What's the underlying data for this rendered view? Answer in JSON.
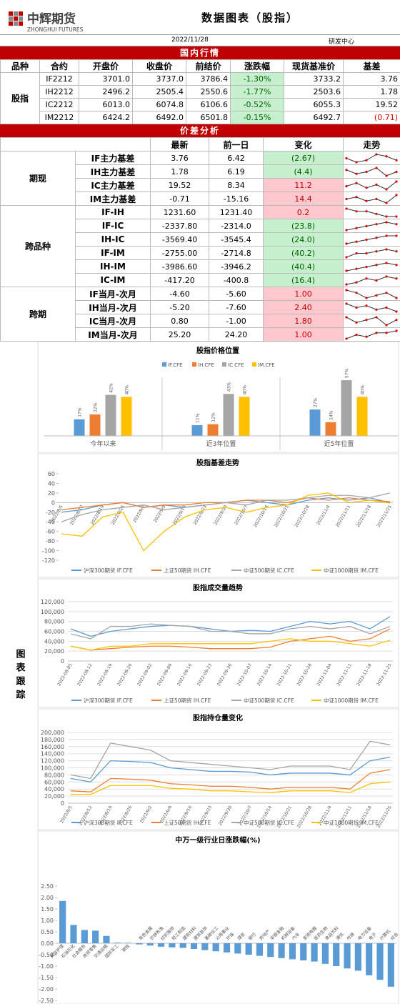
{
  "header": {
    "logo": "中辉期货",
    "logo_en": "ZHONGHUI FUTURES",
    "title": "数据图表（股指）",
    "date": "2022/11/28",
    "dept": "研发中心"
  },
  "market": {
    "title": "国内行情",
    "columns": [
      "品种",
      "合约",
      "开盘价",
      "收盘价",
      "前结价",
      "涨跌幅",
      "现货基准价",
      "基差"
    ],
    "group": "股指",
    "rows": [
      [
        "IF2212",
        "3701.0",
        "3737.0",
        "3786.4",
        "-1.30%",
        "3733.2",
        "3.76"
      ],
      [
        "IH2212",
        "2496.2",
        "2505.4",
        "2550.6",
        "-1.77%",
        "2503.6",
        "1.78"
      ],
      [
        "IC2212",
        "6013.0",
        "6074.8",
        "6106.6",
        "-0.52%",
        "6055.3",
        "19.52"
      ],
      [
        "IM2212",
        "6424.2",
        "6492.0",
        "6501.8",
        "-0.15%",
        "6492.7",
        "(0.71)"
      ]
    ]
  },
  "spread": {
    "title": "价差分析",
    "columns": [
      "最新",
      "前一日",
      "变化",
      "走势"
    ],
    "groups": [
      {
        "name": "期现",
        "rows": [
          {
            "name": "IF主力基差",
            "latest": "3.76",
            "prev": "6.42",
            "change": "(2.67)",
            "trend": [
              5,
              3,
              4,
              7,
              6,
              4
            ]
          },
          {
            "name": "IH主力基差",
            "latest": "1.78",
            "prev": "6.19",
            "change": "(4.4)",
            "trend": [
              6,
              4,
              5,
              7,
              3,
              5
            ]
          },
          {
            "name": "IC主力基差",
            "latest": "19.52",
            "prev": "8.34",
            "change": "11.2",
            "trend": [
              4,
              6,
              3,
              5,
              2,
              7
            ]
          },
          {
            "name": "IM主力基差",
            "latest": "-0.71",
            "prev": "-15.16",
            "change": "14.4",
            "trend": [
              5,
              6,
              4,
              5,
              3,
              7
            ]
          }
        ]
      },
      {
        "name": "跨品种",
        "rows": [
          {
            "name": "IF-IH",
            "latest": "1231.60",
            "prev": "1231.40",
            "change": "0.2",
            "trend": [
              7,
              6,
              6,
              5,
              4,
              4
            ]
          },
          {
            "name": "IF-IC",
            "latest": "-2337.80",
            "prev": "-2314.0",
            "change": "(23.8)",
            "trend": [
              3,
              4,
              5,
              6,
              7,
              6
            ]
          },
          {
            "name": "IH-IC",
            "latest": "-3569.40",
            "prev": "-3545.4",
            "change": "(24.0)",
            "trend": [
              3,
              4,
              5,
              6,
              7,
              7
            ]
          },
          {
            "name": "IF-IM",
            "latest": "-2755.00",
            "prev": "-2714.8",
            "change": "(40.2)",
            "trend": [
              3,
              5,
              5,
              6,
              7,
              6
            ]
          },
          {
            "name": "IH-IM",
            "latest": "-3986.60",
            "prev": "-3946.2",
            "change": "(40.4)",
            "trend": [
              3,
              4,
              5,
              6,
              7,
              6
            ]
          },
          {
            "name": "IC-IM",
            "latest": "-417.20",
            "prev": "-400.8",
            "change": "(16.4)",
            "trend": [
              3,
              4,
              6,
              5,
              7,
              6
            ]
          }
        ]
      },
      {
        "name": "跨期",
        "rows": [
          {
            "name": "IF当月-次月",
            "latest": "-4.60",
            "prev": "-5.60",
            "change": "1.00",
            "trend": [
              6,
              5,
              3,
              4,
              5,
              3
            ]
          },
          {
            "name": "IH当月-次月",
            "latest": "-5.20",
            "prev": "-7.60",
            "change": "2.40",
            "trend": [
              6,
              4,
              5,
              3,
              4,
              2
            ]
          },
          {
            "name": "IC当月-次月",
            "latest": "0.80",
            "prev": "-1.00",
            "change": "1.80",
            "trend": [
              6,
              4,
              5,
              6,
              3,
              5
            ]
          },
          {
            "name": "IM当月-次月",
            "latest": "25.20",
            "prev": "24.20",
            "change": "1.00",
            "trend": [
              3,
              5,
              4,
              6,
              6,
              7
            ]
          }
        ]
      }
    ]
  },
  "section_label": "图表跟踪",
  "chart_data": [
    {
      "type": "bar",
      "title": "股指价格位置",
      "categories": [
        "今年以来",
        "近3年位置",
        "近5年位置"
      ],
      "ylim": [
        0,
        60
      ],
      "series": [
        {
          "name": "IF.CFE",
          "color": "#5b9bd5",
          "values": [
            17,
            11,
            27
          ],
          "value_labels": [
            "17%",
            "11%",
            "27%"
          ]
        },
        {
          "name": "IH.CFE",
          "color": "#ed7d31",
          "values": [
            22,
            12,
            14
          ],
          "value_labels": [
            "22%",
            "12%",
            "14%"
          ]
        },
        {
          "name": "IC.CFE",
          "color": "#a5a5a5",
          "values": [
            42,
            43,
            57
          ],
          "value_labels": [
            "42%",
            "43%",
            "57%"
          ]
        },
        {
          "name": "IM.CFE",
          "color": "#ffc000",
          "values": [
            40,
            40,
            40
          ],
          "value_labels": [
            "40%",
            "40%",
            "40%"
          ]
        }
      ]
    },
    {
      "type": "line",
      "title": "股指基差走势",
      "grid": false,
      "ylim": [
        -120,
        60
      ],
      "yticks": [
        -120,
        -100,
        -80,
        -60,
        -40,
        -20,
        0,
        20,
        40,
        60
      ],
      "categories": [
        "2022/8/5",
        "2022/8/12",
        "2022/8/19",
        "2022/8/26",
        "2022/9/2",
        "2022/9/9",
        "2022/9/16",
        "2022/9/23",
        "2022/9/30",
        "2022/10/7",
        "2022/10/14",
        "2022/10/21",
        "2022/10/28",
        "2022/11/4",
        "2022/11/11",
        "2022/11/18",
        "2022/11/25"
      ],
      "series": [
        {
          "name": "沪深300期货 IF.CFE",
          "color": "#5b9bd5",
          "values": [
            -20,
            -15,
            -5,
            0,
            -10,
            -5,
            -10,
            -5,
            0,
            5,
            0,
            -5,
            5,
            10,
            5,
            10,
            0
          ]
        },
        {
          "name": "上证50期货 IH.CFE",
          "color": "#ed7d31",
          "values": [
            -15,
            -10,
            -5,
            0,
            -10,
            -5,
            -5,
            0,
            0,
            5,
            5,
            0,
            10,
            5,
            10,
            5,
            2
          ]
        },
        {
          "name": "中证500期货 IC.CFE",
          "color": "#a5a5a5",
          "values": [
            -40,
            -25,
            -15,
            -10,
            -5,
            -15,
            -10,
            -5,
            0,
            -5,
            5,
            5,
            10,
            15,
            15,
            10,
            20
          ]
        },
        {
          "name": "中证1000期货 IM.CFE",
          "color": "#ffc000",
          "values": [
            -65,
            -70,
            -30,
            -20,
            -100,
            -60,
            -30,
            -15,
            -10,
            -20,
            -10,
            -5,
            15,
            20,
            0,
            5,
            -1
          ]
        }
      ]
    },
    {
      "type": "line",
      "title": "股指成交量趋势",
      "grid": true,
      "ylim": [
        0,
        120000
      ],
      "yticks": [
        0,
        {
          "value": 20000,
          "label": "20,000"
        },
        {
          "value": 40000,
          "label": "40,000"
        },
        {
          "value": 60000,
          "label": "60,000"
        },
        {
          "value": 80000,
          "label": "80,000"
        },
        {
          "value": 100000,
          "label": "100,000"
        },
        {
          "value": 120000,
          "label": "120,000"
        }
      ],
      "categories": [
        "2022-08-05",
        "2022-08-12",
        "2022-08-19",
        "2022-08-26",
        "2022-09-02",
        "2022-09-09",
        "2022-09-16",
        "2022-09-23",
        "2022-09-30",
        "2022-10-07",
        "2022-10-14",
        "2022-10-21",
        "2022-10-28",
        "2022-11-04",
        "2022-11-11",
        "2022-11-18",
        "2022-11-25"
      ],
      "series": [
        {
          "name": "沪深300期货 IF.CFE",
          "color": "#5b9bd5",
          "values": [
            65000,
            50000,
            60000,
            65000,
            70000,
            72000,
            70000,
            65000,
            60000,
            62000,
            60000,
            70000,
            80000,
            75000,
            80000,
            65000,
            90000
          ]
        },
        {
          "name": "上证50期货 IH.CFE",
          "color": "#ed7d31",
          "values": [
            30000,
            22000,
            25000,
            28000,
            30000,
            30000,
            28000,
            25000,
            25000,
            25000,
            28000,
            40000,
            45000,
            50000,
            40000,
            45000,
            65000
          ]
        },
        {
          "name": "中证500期货 IC.CFE",
          "color": "#a5a5a5",
          "values": [
            55000,
            45000,
            70000,
            70000,
            75000,
            72000,
            70000,
            60000,
            60000,
            55000,
            55000,
            65000,
            70000,
            65000,
            70000,
            55000,
            70000
          ]
        },
        {
          "name": "中证1000期货 IM.CFE",
          "color": "#ffc000",
          "values": [
            30000,
            22000,
            30000,
            30000,
            35000,
            35000,
            35000,
            35000,
            35000,
            35000,
            40000,
            45000,
            40000,
            40000,
            35000,
            30000,
            42000
          ]
        }
      ]
    },
    {
      "type": "line",
      "title": "股指持仓量变化",
      "grid": true,
      "ylim": [
        0,
        200000
      ],
      "yticks": [
        0,
        {
          "value": 20000,
          "label": "20,000"
        },
        {
          "value": 40000,
          "label": "40,000"
        },
        {
          "value": 60000,
          "label": "60,000"
        },
        {
          "value": 80000,
          "label": "80,000"
        },
        {
          "value": 100000,
          "label": "100,000"
        },
        {
          "value": 120000,
          "label": "120,000"
        },
        {
          "value": 140000,
          "label": "140,000"
        },
        {
          "value": 160000,
          "label": "160,000"
        },
        {
          "value": 180000,
          "label": "180,000"
        },
        {
          "value": 200000,
          "label": "200,000"
        }
      ],
      "categories": [
        "2022/8/5",
        "2022/8/12",
        "2022/8/19",
        "2022/8/26",
        "2022/9/2",
        "2022/9/9",
        "2022/9/16",
        "2022/9/23",
        "2022/9/30",
        "2022/10/7",
        "2022/10/14",
        "2022/10/21",
        "2022/10/28",
        "2022/11/4",
        "2022/11/11",
        "2022/11/18",
        "2022/11/25"
      ],
      "series": [
        {
          "name": "沪深300期货 IF.CFE",
          "color": "#5b9bd5",
          "values": [
            70000,
            60000,
            120000,
            118000,
            115000,
            100000,
            95000,
            90000,
            90000,
            88000,
            80000,
            85000,
            85000,
            85000,
            80000,
            120000,
            130000
          ]
        },
        {
          "name": "上证50期货 IH.CFE",
          "color": "#ed7d31",
          "values": [
            35000,
            32000,
            70000,
            68000,
            65000,
            55000,
            52000,
            48000,
            48000,
            45000,
            40000,
            45000,
            45000,
            45000,
            40000,
            85000,
            95000
          ]
        },
        {
          "name": "中证500期货 IC.CFE",
          "color": "#a5a5a5",
          "values": [
            80000,
            70000,
            170000,
            160000,
            150000,
            120000,
            115000,
            110000,
            105000,
            100000,
            95000,
            105000,
            105000,
            105000,
            95000,
            175000,
            165000
          ]
        },
        {
          "name": "中证1000期货 IM.CFE",
          "color": "#ffc000",
          "values": [
            25000,
            25000,
            50000,
            50000,
            50000,
            42000,
            40000,
            35000,
            35000,
            32000,
            30000,
            35000,
            35000,
            35000,
            30000,
            55000,
            60000
          ]
        }
      ]
    },
    {
      "type": "bar",
      "title": "中万一级行业日涨跌幅(%)",
      "color": "#5b9bd5",
      "ylim": [
        -2.5,
        2.5
      ],
      "yticks": [
        {
          "value": -2.5,
          "label": "-2.50"
        },
        {
          "value": -2,
          "label": "-2.00"
        },
        {
          "value": -1.5,
          "label": "-1.50"
        },
        {
          "value": -1,
          "label": "-1.00"
        },
        {
          "value": -0.5,
          "label": "-0.50"
        },
        {
          "value": 0,
          "label": "0.00"
        },
        {
          "value": 0.5,
          "label": "0.50"
        },
        {
          "value": 1,
          "label": "1.00"
        },
        {
          "value": 1.5,
          "label": "1.50"
        },
        {
          "value": 2,
          "label": "2.00"
        },
        {
          "value": 2.5,
          "label": "2.50"
        }
      ],
      "categories": [
        "美容护理",
        "石油石化",
        "社会服务",
        "商贸零售",
        "交通运输",
        "国防军工",
        "钢铁",
        "有色金属",
        "农林牧渔",
        "纺织服饰",
        "轻工制造",
        "建筑材料",
        "建筑装饰",
        "基础化工",
        "公用事业",
        "环保",
        "煤炭",
        "银行",
        "房地产",
        "非银金融",
        "机械设备",
        "汽车",
        "家用电器",
        "医药生物",
        "食品饮料",
        "通信",
        "传媒",
        "电力设备",
        "电子",
        "计算机",
        "综合"
      ],
      "values": [
        1.85,
        0.8,
        0.58,
        0.55,
        0.32,
        0.03,
        0.02,
        -0.05,
        -0.1,
        -0.15,
        -0.18,
        -0.2,
        -0.25,
        -0.3,
        -0.35,
        -0.4,
        -0.45,
        -0.5,
        -0.55,
        -0.6,
        -0.65,
        -0.7,
        -0.75,
        -0.8,
        -0.9,
        -1.0,
        -1.1,
        -1.2,
        -1.4,
        -1.6,
        -1.9
      ]
    }
  ]
}
